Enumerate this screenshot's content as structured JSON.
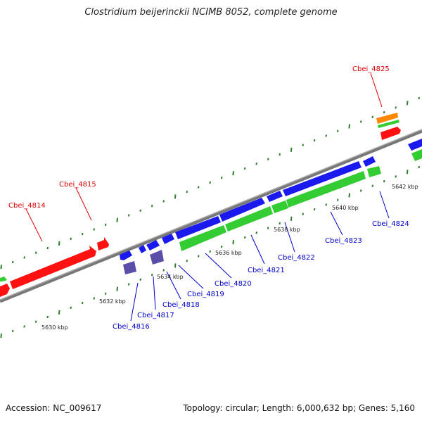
{
  "title": "Clostridium beijerinckii NCIMB 8052, complete genome",
  "footer": {
    "accession": "Accession: NC_009617",
    "summary": "Topology: circular; Length: 6,000,632 bp; Genes: 5,160"
  },
  "colors": {
    "backbone": "#888888",
    "tick": "#2f7d2f",
    "forward_gene": "#ff1111",
    "reverse_gene": "#1a1aee",
    "cds": "#33cc33",
    "rna": "#ff8800",
    "alt": "#5a4fa8",
    "label_red": "#dd0000",
    "label_blue": "#0000cc"
  },
  "scale_labels": [
    "5630 kbp",
    "5632 kbp",
    "5634 kbp",
    "5636 kbp",
    "5638 kbp",
    "5640 kbp",
    "5642 kbp"
  ],
  "gene_labels": {
    "forward": [
      "Cbei_4814",
      "Cbei_4815",
      "Cbei_4825"
    ],
    "reverse": [
      "Cbei_4816",
      "Cbei_4817",
      "Cbei_4818",
      "Cbei_4819",
      "Cbei_4820",
      "Cbei_4821",
      "Cbei_4822",
      "Cbei_4823",
      "Cbei_4824"
    ]
  }
}
